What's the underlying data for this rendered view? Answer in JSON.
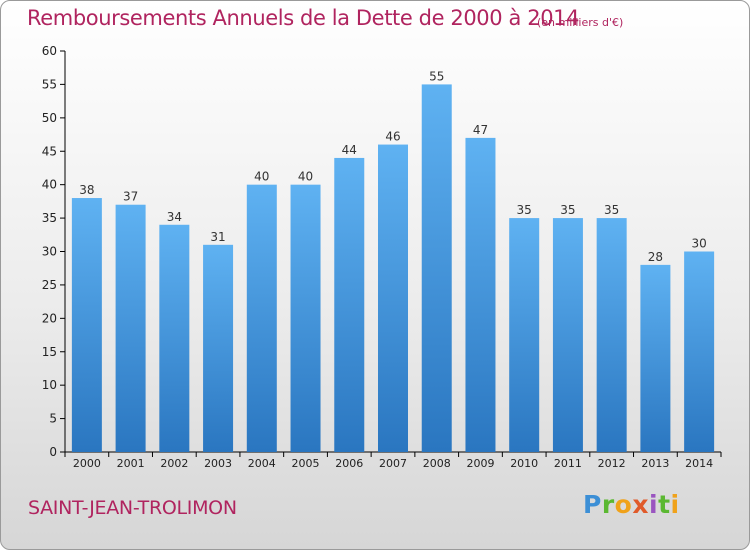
{
  "header": {
    "title": "Remboursements Annuels de la Dette de 2000 à 2014",
    "subtitle": "(en milliers d'€)"
  },
  "footer": {
    "city": "SAINT-JEAN-TROLIMON",
    "logo": "Proxiti"
  },
  "colors": {
    "title": "#b0245f",
    "bar_light": "#5aaef0",
    "bar_dark": "#2a78c2",
    "axis": "#000000"
  },
  "chart_data": {
    "type": "bar",
    "title": "Remboursements Annuels de la Dette de 2000 à 2014",
    "xlabel": "",
    "ylabel": "",
    "categories": [
      "2000",
      "2001",
      "2002",
      "2003",
      "2004",
      "2005",
      "2006",
      "2007",
      "2008",
      "2009",
      "2010",
      "2011",
      "2012",
      "2013",
      "2014"
    ],
    "values": [
      38,
      37,
      34,
      31,
      40,
      40,
      44,
      46,
      55,
      47,
      35,
      35,
      35,
      28,
      30
    ],
    "ylim": [
      0,
      60
    ],
    "yticks": [
      0,
      5,
      10,
      15,
      20,
      25,
      30,
      35,
      40,
      45,
      50,
      55,
      60
    ],
    "grid": false,
    "data_labels": true
  }
}
